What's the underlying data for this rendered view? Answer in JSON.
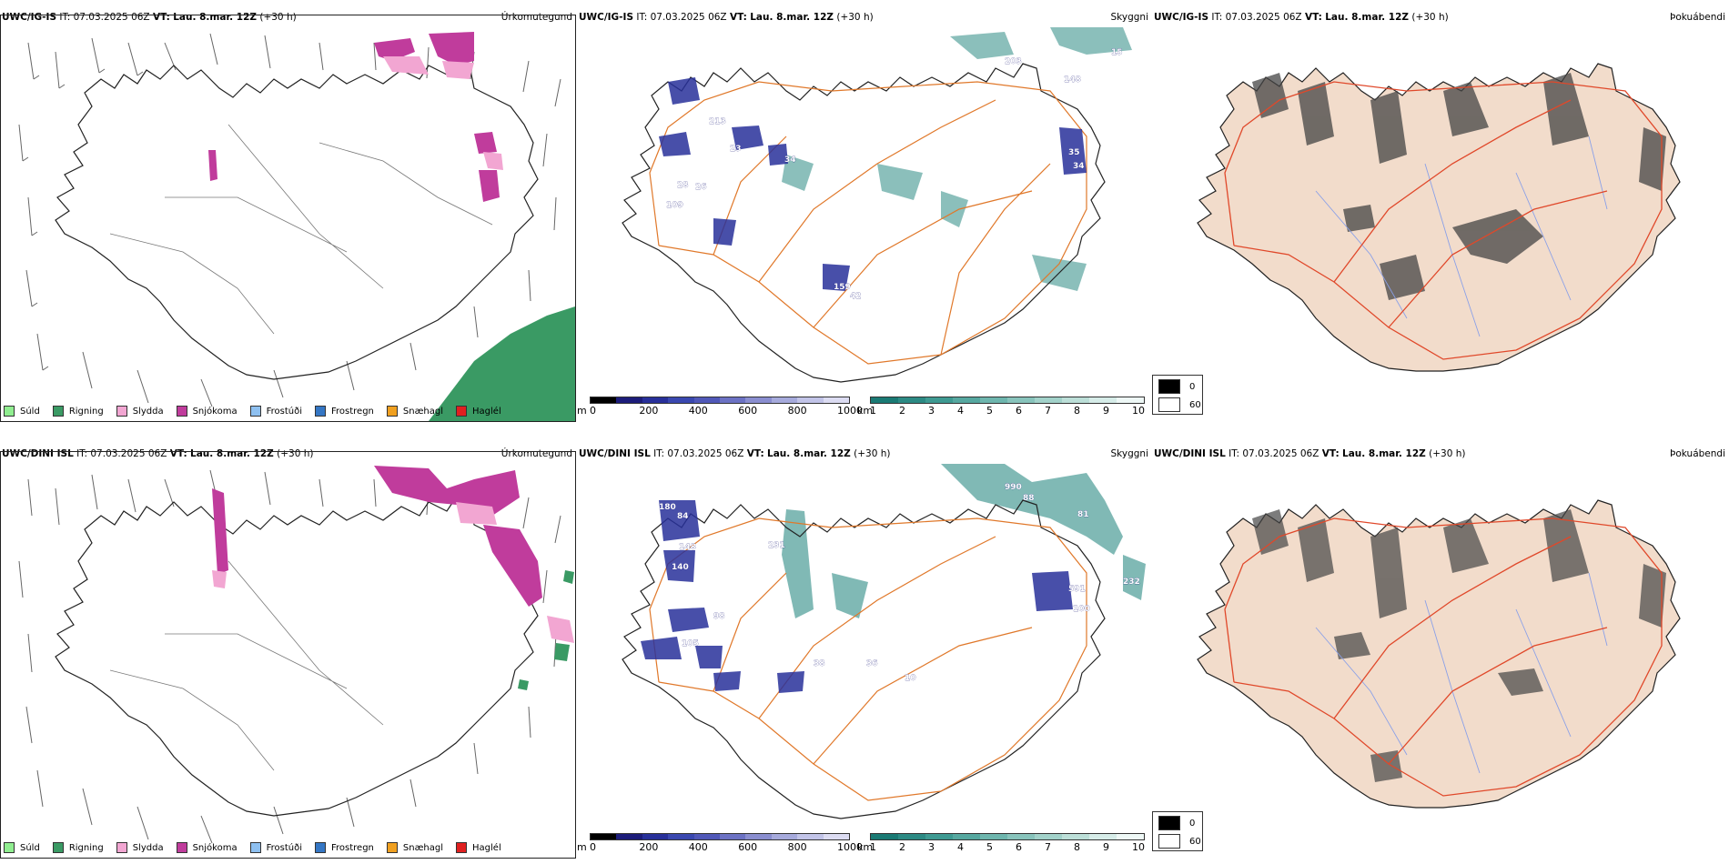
{
  "rows": [
    {
      "model": "UWC/IG-IS",
      "it_label": "IT:",
      "it_value": "07.03.2025 06Z",
      "vt_label": "VT:",
      "vt_value": "Lau. 8.mar. 12Z",
      "lead": "(+30 h)",
      "panels": [
        "Úrkomutegund",
        "Skyggni",
        "Þokuábendi"
      ],
      "visibility_labels": [
        "203",
        "148",
        "15",
        "213",
        "23",
        "34",
        "28",
        "26",
        "35",
        "34",
        "109",
        "159",
        "42"
      ]
    },
    {
      "model": "UWC/DINI ISL",
      "it_label": "IT:",
      "it_value": "07.03.2025 06Z",
      "vt_label": "VT:",
      "vt_value": "Lau. 8.mar. 12Z",
      "lead": "(+30 h)",
      "panels": [
        "Úrkomutegund",
        "Skyggni",
        "Þokuábendi"
      ],
      "visibility_labels": [
        "180",
        "84",
        "148",
        "140",
        "231",
        "990",
        "88",
        "81",
        "591",
        "232",
        "100",
        "98",
        "105",
        "38",
        "36",
        "10"
      ]
    }
  ],
  "precip_legend": [
    {
      "label": "Súld",
      "color": "#90ee90"
    },
    {
      "label": "Rigning",
      "color": "#3a9a64"
    },
    {
      "label": "Slydda",
      "color": "#f2a6d2"
    },
    {
      "label": "Snjókoma",
      "color": "#c03c9c"
    },
    {
      "label": "Frostúði",
      "color": "#8ec0f0"
    },
    {
      "label": "Frostregn",
      "color": "#3476c4"
    },
    {
      "label": "Snæhagl",
      "color": "#f0a020"
    },
    {
      "label": "Haglél",
      "color": "#e02020"
    }
  ],
  "ceiling_bar": {
    "unit": "m",
    "ticks": [
      "0",
      "200",
      "400",
      "600",
      "800",
      "1000"
    ],
    "colors": [
      "#000000",
      "#1c1c7a",
      "#28309a",
      "#3a48b0",
      "#5058b8",
      "#6c72c4",
      "#8a8ed0",
      "#a6aadc",
      "#c2c4e8",
      "#dcdcf2"
    ]
  },
  "vis_bar": {
    "unit": "km",
    "ticks": [
      "1",
      "2",
      "3",
      "4",
      "5",
      "6",
      "7",
      "8",
      "9",
      "10"
    ],
    "colors": [
      "#1a7a74",
      "#2c8a84",
      "#3e9a92",
      "#56a8a0",
      "#6eb6ae",
      "#88c4bc",
      "#a2d2ca",
      "#bcdfd8",
      "#d6ece8",
      "#eef8f6"
    ]
  },
  "fog_legend": [
    {
      "label": "0",
      "color": "#000000"
    },
    {
      "label": "60",
      "color": "#ffffff"
    }
  ],
  "colors": {
    "coast": "#222222",
    "roads": "#e0782a",
    "road_red": "#e0482a",
    "land_fog": "#f2dccb",
    "rivers": "#8aa0e8",
    "snow": "#c03c9c",
    "sleet": "#f2a6d2",
    "rain": "#3a9a64",
    "teal": "#2c8a84",
    "blue_cloud": "#28309a"
  }
}
